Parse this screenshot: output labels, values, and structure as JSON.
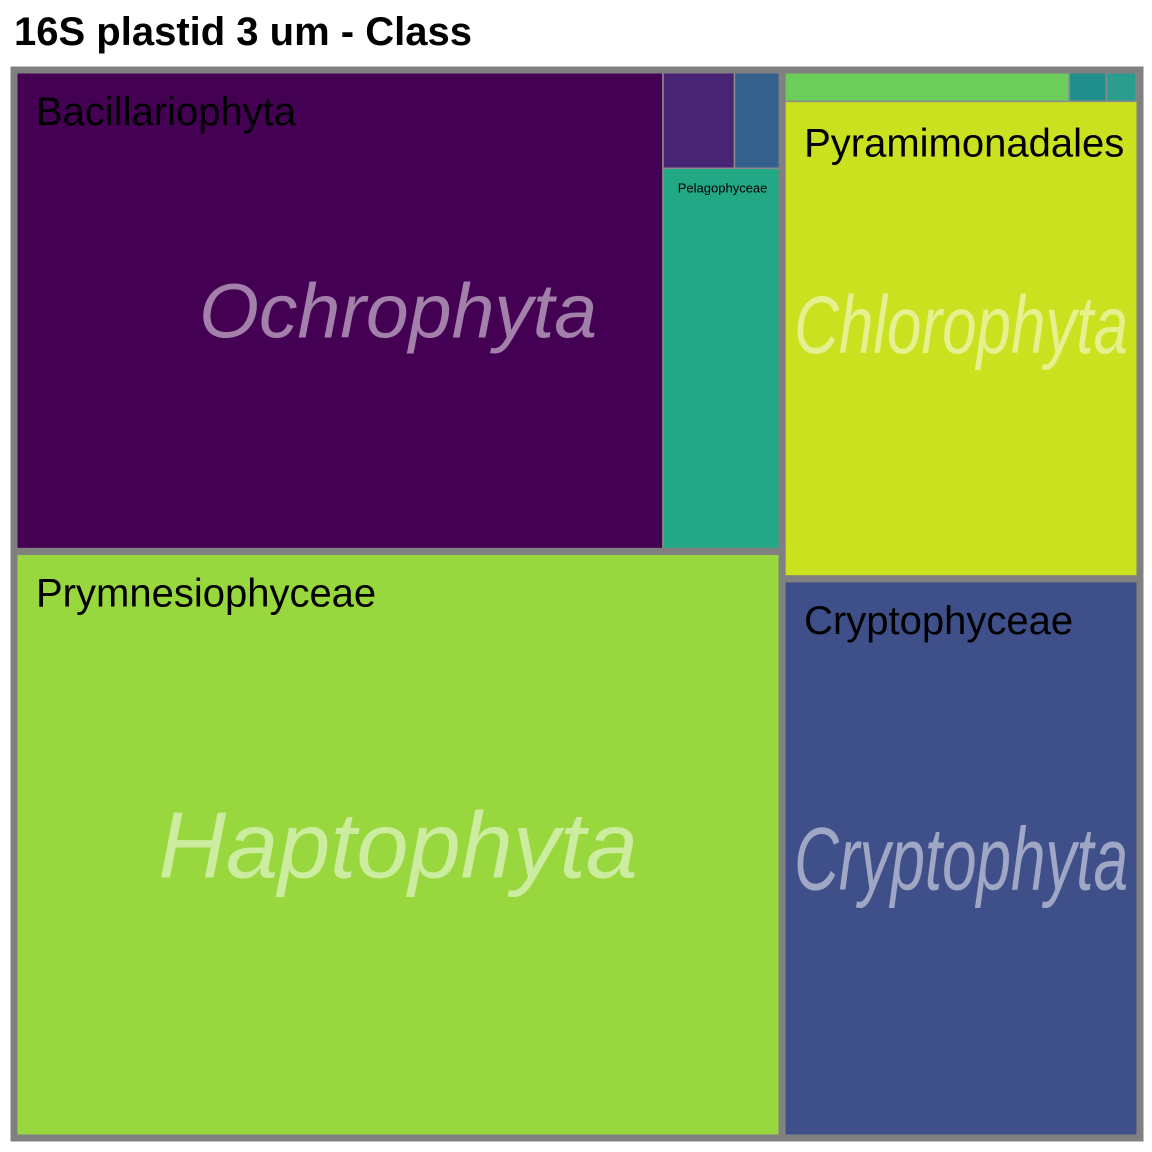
{
  "title": "16S plastid 3 um - Class",
  "chart_data": {
    "type": "treemap",
    "title": "16S plastid 3 um - Class",
    "groups": [
      {
        "name": "Ochrophyta",
        "classes": [
          {
            "name": "Bacillariophyta",
            "value": 26.7,
            "color": "#440154"
          },
          {
            "name": "Pelagophyceae",
            "value": 3.9,
            "color": "#22a884"
          },
          {
            "name": "",
            "value": 0.6,
            "color": "#482475"
          },
          {
            "name": "",
            "value": 0.4,
            "color": "#355f8d"
          }
        ]
      },
      {
        "name": "Chlorophyta",
        "classes": [
          {
            "name": "Pyramimonadales",
            "value": 14.6,
            "color": "#cae11f"
          },
          {
            "name": "",
            "value": 0.77,
            "color": "#6ccd5a"
          },
          {
            "name": "",
            "value": 0.1,
            "color": "#21908d"
          },
          {
            "name": "",
            "value": 0.08,
            "color": "#2a9d8f"
          },
          {
            "name": "",
            "value": 0.01,
            "color": "#fde725"
          }
        ]
      },
      {
        "name": "Haptophyta",
        "classes": [
          {
            "name": "Prymnesiophyceae",
            "value": 38.5,
            "color": "#98d83e"
          }
        ]
      },
      {
        "name": "Cryptophyta",
        "classes": [
          {
            "name": "Cryptophyceae",
            "value": 17.1,
            "color": "#3e4f8a"
          }
        ]
      }
    ]
  }
}
